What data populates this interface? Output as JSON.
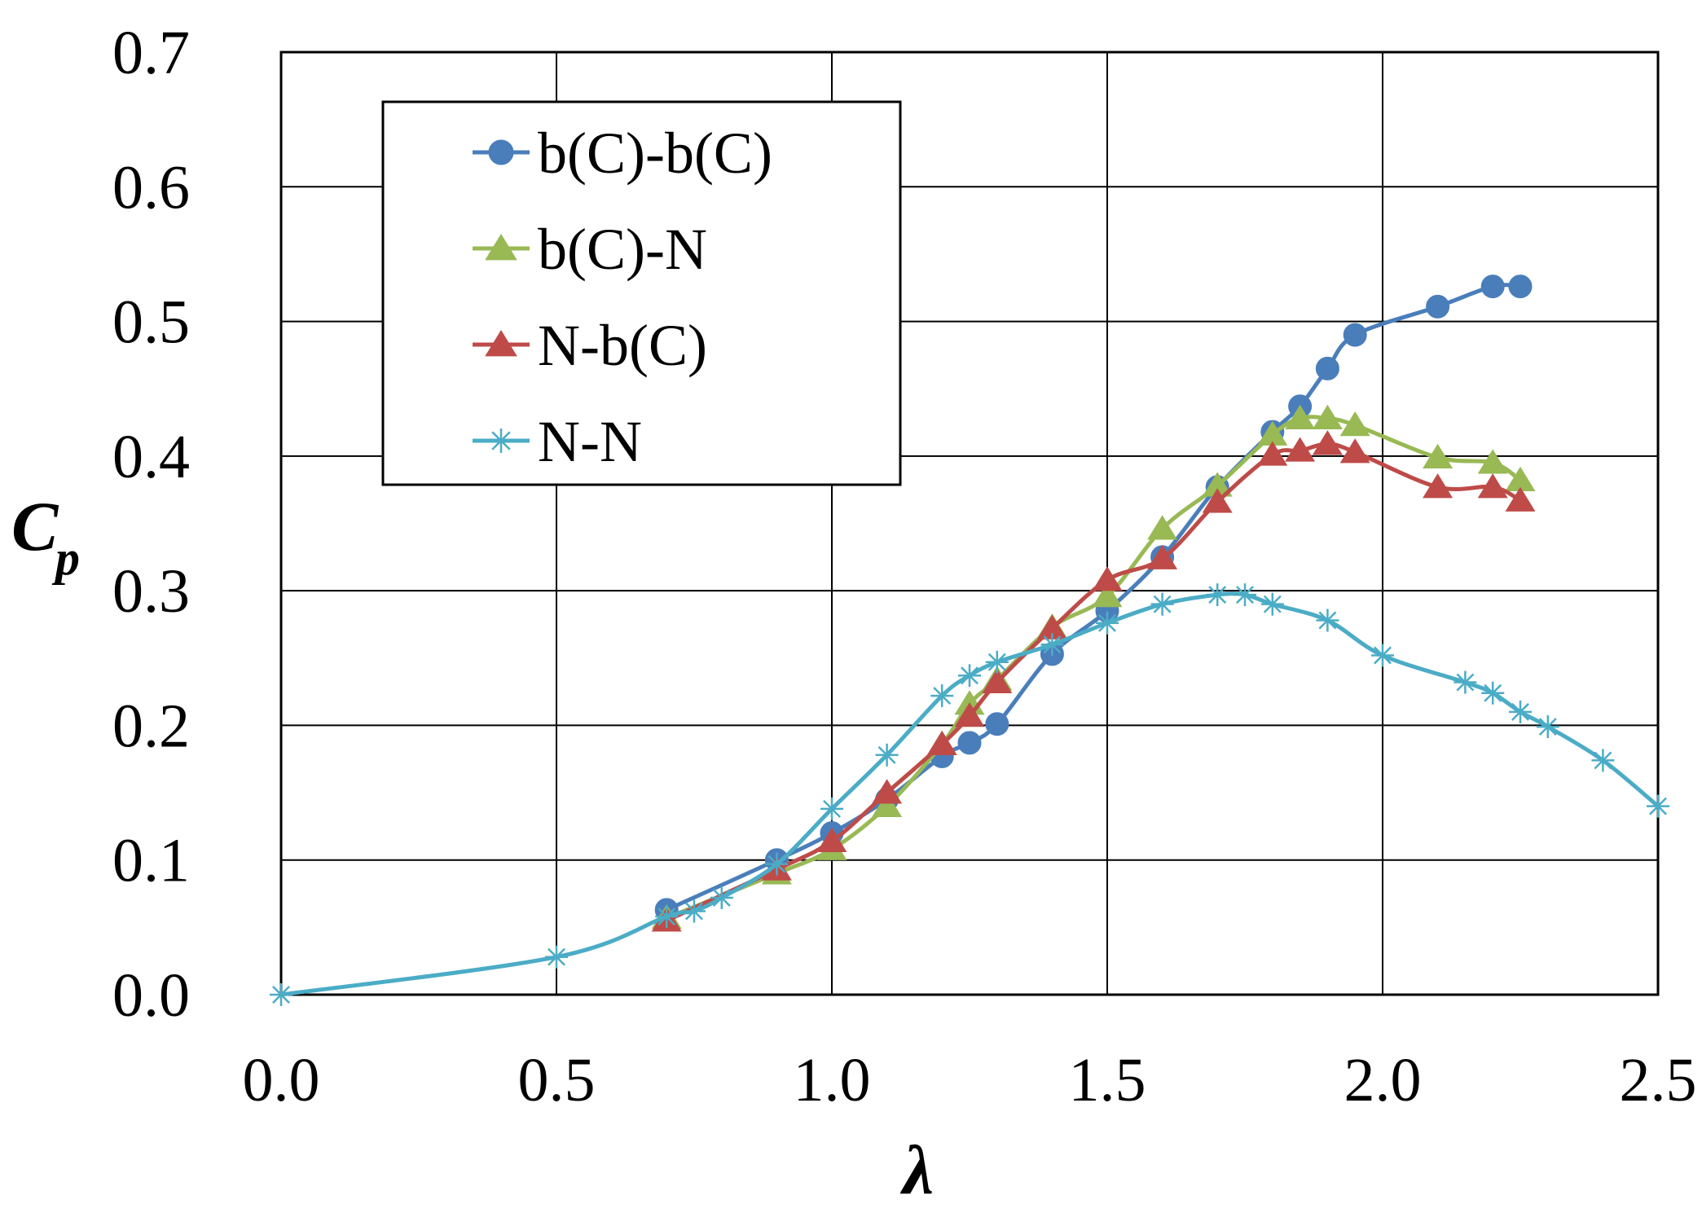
{
  "chart_data": {
    "type": "line",
    "title": "",
    "xlabel": "λ",
    "ylabel": "C",
    "ylabel_subscript": "p",
    "xlim": [
      0.0,
      2.5
    ],
    "ylim": [
      0.0,
      0.7
    ],
    "xticks": [
      0.0,
      0.5,
      1.0,
      1.5,
      2.0,
      2.5
    ],
    "yticks": [
      0.0,
      0.1,
      0.2,
      0.3,
      0.4,
      0.5,
      0.6,
      0.7
    ],
    "xtick_labels": [
      "0.0",
      "0.5",
      "1.0",
      "1.5",
      "2.0",
      "2.5"
    ],
    "ytick_labels": [
      "0.0",
      "0.1",
      "0.2",
      "0.3",
      "0.4",
      "0.5",
      "0.6",
      "0.7"
    ],
    "grid": true,
    "legend_position": "top-left",
    "series": [
      {
        "name": "b(C)-b(C)",
        "color": "#4a7ebb",
        "marker": "circle",
        "x": [
          0.7,
          0.9,
          1.0,
          1.1,
          1.2,
          1.25,
          1.3,
          1.4,
          1.5,
          1.6,
          1.7,
          1.8,
          1.85,
          1.9,
          1.95,
          2.1,
          2.2,
          2.25
        ],
        "y": [
          0.063,
          0.1,
          0.12,
          0.145,
          0.177,
          0.187,
          0.201,
          0.253,
          0.285,
          0.325,
          0.377,
          0.418,
          0.437,
          0.465,
          0.49,
          0.511,
          0.526,
          0.526
        ]
      },
      {
        "name": "b(C)-N",
        "color": "#98b954",
        "marker": "triangle",
        "x": [
          0.7,
          0.9,
          1.0,
          1.1,
          1.2,
          1.25,
          1.3,
          1.4,
          1.5,
          1.6,
          1.7,
          1.8,
          1.85,
          1.9,
          1.95,
          2.1,
          2.2,
          2.25
        ],
        "y": [
          0.057,
          0.09,
          0.108,
          0.14,
          0.186,
          0.216,
          0.234,
          0.273,
          0.296,
          0.346,
          0.378,
          0.416,
          0.428,
          0.428,
          0.423,
          0.399,
          0.395,
          0.382
        ]
      },
      {
        "name": "N-b(C)",
        "color": "#be4b48",
        "marker": "triangle",
        "x": [
          0.7,
          0.9,
          1.0,
          1.1,
          1.2,
          1.25,
          1.3,
          1.4,
          1.5,
          1.6,
          1.7,
          1.8,
          1.85,
          1.9,
          1.95,
          2.1,
          2.2,
          2.25
        ],
        "y": [
          0.055,
          0.093,
          0.114,
          0.15,
          0.186,
          0.207,
          0.232,
          0.272,
          0.308,
          0.324,
          0.366,
          0.401,
          0.404,
          0.409,
          0.403,
          0.377,
          0.377,
          0.367
        ]
      },
      {
        "name": "N-N",
        "color": "#4bacc6",
        "marker": "asterisk",
        "x": [
          0.0,
          0.5,
          0.7,
          0.75,
          0.8,
          0.9,
          1.0,
          1.1,
          1.2,
          1.25,
          1.3,
          1.4,
          1.5,
          1.6,
          1.7,
          1.75,
          1.8,
          1.9,
          2.0,
          2.15,
          2.2,
          2.25,
          2.3,
          2.4,
          2.5
        ],
        "y": [
          0.0,
          0.028,
          0.058,
          0.062,
          0.072,
          0.097,
          0.138,
          0.178,
          0.222,
          0.237,
          0.247,
          0.26,
          0.276,
          0.29,
          0.297,
          0.297,
          0.29,
          0.278,
          0.252,
          0.232,
          0.224,
          0.21,
          0.199,
          0.174,
          0.14
        ]
      }
    ]
  }
}
